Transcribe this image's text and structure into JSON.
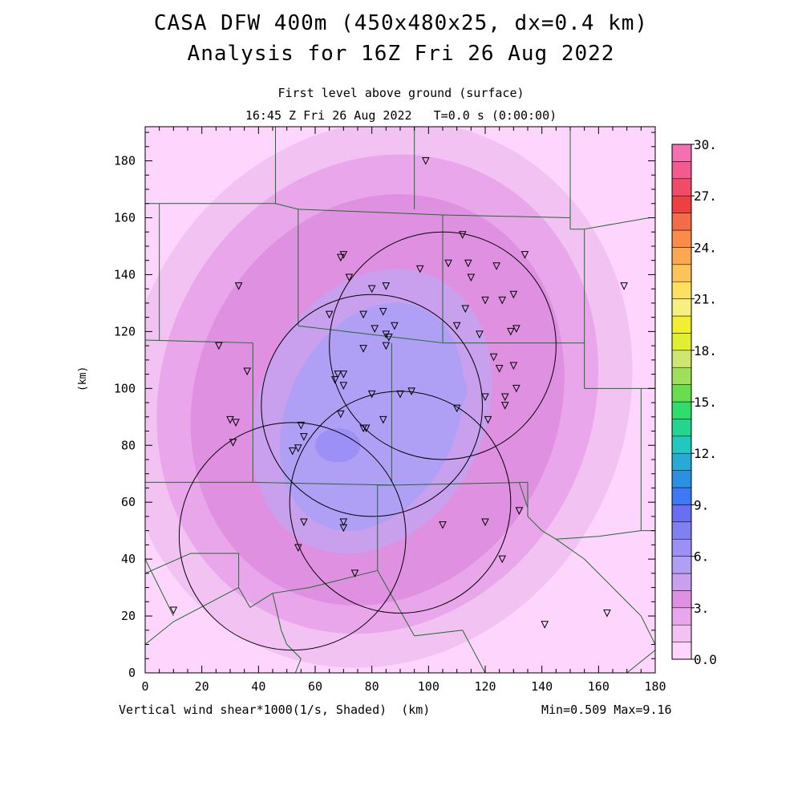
{
  "chart_data": {
    "type": "heatmap",
    "title": "CASA DFW 400m (450x480x25, dx=0.4 km)",
    "subtitle": "Analysis for 16Z Fri 26 Aug 2022",
    "level": "First level above ground (surface)",
    "valid_time": "16:45 Z Fri 26 Aug 2022   T=0.0 s (0:00:00)",
    "xlabel": "Vertical wind shear*1000(1/s, Shaded)  (km)",
    "ylabel": "(km)",
    "stats": "Min=0.509 Max=9.16",
    "xlim": [
      0,
      180
    ],
    "ylim": [
      0,
      192
    ],
    "x_ticks": [
      "0",
      "20",
      "40",
      "60",
      "80",
      "100",
      "120",
      "140",
      "160",
      "180"
    ],
    "y_ticks": [
      "0",
      "20",
      "40",
      "60",
      "80",
      "100",
      "120",
      "140",
      "160",
      "180"
    ],
    "colorbar": {
      "range": [
        0,
        30
      ],
      "step": 1.5,
      "labels": [
        "0.0",
        "3.",
        "6.",
        "9.",
        "12.",
        "15.",
        "18.",
        "21.",
        "24.",
        "27.",
        "30."
      ],
      "colors": [
        "#fdd5fd",
        "#f2c3f2",
        "#eaa6ea",
        "#e090e0",
        "#c9a0ee",
        "#b0a0f5",
        "#9c8ff5",
        "#8080f0",
        "#6a6ef0",
        "#3f78f6",
        "#2c90e2",
        "#28aad4",
        "#20c8c0",
        "#22d690",
        "#30dc6a",
        "#66de50",
        "#9ee05a",
        "#d0e670",
        "#e0f030",
        "#f0f030",
        "#f6f080",
        "#fde060",
        "#fcc458",
        "#fba850",
        "#f88c48",
        "#f26c48",
        "#ef4040",
        "#f04c6a",
        "#f25a90",
        "#f470b0"
      ]
    },
    "field_blobs": [
      {
        "cx": 82,
        "cy": 100,
        "rx": 100,
        "ry": 110,
        "rot": 25,
        "value": 1.2
      },
      {
        "cx": 82,
        "cy": 98,
        "rx": 88,
        "ry": 98,
        "rot": 25,
        "value": 2.3
      },
      {
        "cx": 82,
        "cy": 98,
        "rx": 76,
        "ry": 86,
        "rot": 25,
        "value": 3.4
      },
      {
        "cx": 82,
        "cy": 96,
        "rx": 64,
        "ry": 74,
        "rot": 25,
        "value": 4.5
      },
      {
        "cx": 80,
        "cy": 94,
        "rx": 52,
        "ry": 62,
        "rot": 25,
        "value": 5.6
      },
      {
        "cx": 80,
        "cy": 92,
        "rx": 40,
        "ry": 52,
        "rot": 25,
        "value": 6.7
      },
      {
        "cx": 80,
        "cy": 90,
        "rx": 30,
        "ry": 42,
        "rot": 25,
        "value": 7.5
      },
      {
        "cx": 77,
        "cy": 85,
        "rx": 20,
        "ry": 32,
        "rot": 25,
        "value": 8.3
      },
      {
        "cx": 100,
        "cy": 102,
        "rx": 14,
        "ry": 10,
        "rot": 20,
        "value": 8.3
      },
      {
        "cx": 68,
        "cy": 80,
        "rx": 8,
        "ry": 6,
        "rot": 0,
        "value": 9.0
      }
    ],
    "radar_rings": [
      {
        "cx": 105,
        "cy": 115,
        "r": 40
      },
      {
        "cx": 80,
        "cy": 94,
        "r": 39
      },
      {
        "cx": 90,
        "cy": 60,
        "r": 39
      },
      {
        "cx": 52,
        "cy": 48,
        "r": 40
      }
    ],
    "stations": [
      [
        99,
        180
      ],
      [
        112,
        154
      ],
      [
        134,
        147
      ],
      [
        70,
        147
      ],
      [
        69,
        146
      ],
      [
        107,
        144
      ],
      [
        114,
        144
      ],
      [
        124,
        143
      ],
      [
        97,
        142
      ],
      [
        115,
        139
      ],
      [
        72,
        139
      ],
      [
        33,
        136
      ],
      [
        85,
        136
      ],
      [
        80,
        135
      ],
      [
        169,
        136
      ],
      [
        130,
        133
      ],
      [
        126,
        131
      ],
      [
        120,
        131
      ],
      [
        113,
        128
      ],
      [
        84,
        127
      ],
      [
        65,
        126
      ],
      [
        77,
        126
      ],
      [
        88,
        122
      ],
      [
        110,
        122
      ],
      [
        81,
        121
      ],
      [
        131,
        121
      ],
      [
        129,
        120
      ],
      [
        118,
        119
      ],
      [
        85,
        119
      ],
      [
        86,
        118
      ],
      [
        85,
        115
      ],
      [
        77,
        114
      ],
      [
        26,
        115
      ],
      [
        123,
        111
      ],
      [
        125,
        107
      ],
      [
        130,
        108
      ],
      [
        68,
        105
      ],
      [
        36,
        106
      ],
      [
        70,
        105
      ],
      [
        67,
        103
      ],
      [
        70,
        101
      ],
      [
        131,
        100
      ],
      [
        94,
        99
      ],
      [
        90,
        98
      ],
      [
        80,
        98
      ],
      [
        127,
        97
      ],
      [
        120,
        97
      ],
      [
        110,
        93
      ],
      [
        127,
        94
      ],
      [
        69,
        91
      ],
      [
        84,
        89
      ],
      [
        121,
        89
      ],
      [
        30,
        89
      ],
      [
        32,
        88
      ],
      [
        77,
        86
      ],
      [
        78,
        86
      ],
      [
        55,
        87
      ],
      [
        56,
        83
      ],
      [
        31,
        81
      ],
      [
        54,
        79
      ],
      [
        52,
        78
      ],
      [
        132,
        57
      ],
      [
        56,
        53
      ],
      [
        120,
        53
      ],
      [
        105,
        52
      ],
      [
        70,
        53
      ],
      [
        70,
        51
      ],
      [
        54,
        44
      ],
      [
        126,
        40
      ],
      [
        74,
        35
      ],
      [
        10,
        22
      ],
      [
        141,
        17
      ],
      [
        163,
        21
      ]
    ],
    "boundaries": [
      [
        [
          46,
          192
        ],
        [
          46,
          165
        ]
      ],
      [
        [
          0,
          165
        ],
        [
          46,
          165
        ]
      ],
      [
        [
          46,
          165
        ],
        [
          54,
          163
        ]
      ],
      [
        [
          54,
          163
        ],
        [
          105,
          161
        ]
      ],
      [
        [
          105,
          161
        ],
        [
          150,
          160
        ]
      ],
      [
        [
          95,
          192
        ],
        [
          95,
          163
        ]
      ],
      [
        [
          150,
          192
        ],
        [
          150,
          156
        ]
      ],
      [
        [
          150,
          156
        ],
        [
          155,
          156
        ]
      ],
      [
        [
          155,
          156
        ],
        [
          178,
          160
        ]
      ],
      [
        [
          178,
          160
        ],
        [
          180,
          160
        ]
      ],
      [
        [
          5,
          165
        ],
        [
          5,
          117
        ]
      ],
      [
        [
          0,
          117
        ],
        [
          38,
          116
        ]
      ],
      [
        [
          38,
          116
        ],
        [
          38,
          67
        ]
      ],
      [
        [
          54,
          163
        ],
        [
          54,
          122
        ]
      ],
      [
        [
          54,
          122
        ],
        [
          105,
          116
        ]
      ],
      [
        [
          105,
          161
        ],
        [
          105,
          116
        ]
      ],
      [
        [
          105,
          116
        ],
        [
          155,
          116
        ]
      ],
      [
        [
          155,
          156
        ],
        [
          155,
          116
        ]
      ],
      [
        [
          155,
          116
        ],
        [
          155,
          100
        ]
      ],
      [
        [
          155,
          100
        ],
        [
          180,
          100
        ]
      ],
      [
        [
          87,
          116
        ],
        [
          87,
          67
        ]
      ],
      [
        [
          0,
          67
        ],
        [
          38,
          67
        ]
      ],
      [
        [
          38,
          67
        ],
        [
          87,
          66
        ]
      ],
      [
        [
          87,
          66
        ],
        [
          135,
          67
        ]
      ],
      [
        [
          135,
          67
        ],
        [
          135,
          55
        ]
      ],
      [
        [
          135,
          55
        ],
        [
          140,
          50
        ]
      ],
      [
        [
          140,
          50
        ],
        [
          145,
          47
        ]
      ],
      [
        [
          145,
          47
        ],
        [
          160,
          48
        ]
      ],
      [
        [
          160,
          48
        ],
        [
          175,
          50
        ]
      ],
      [
        [
          175,
          50
        ],
        [
          180,
          50
        ]
      ],
      [
        [
          175,
          100
        ],
        [
          175,
          50
        ]
      ],
      [
        [
          87,
          66
        ],
        [
          82,
          66
        ]
      ],
      [
        [
          82,
          66
        ],
        [
          82,
          36
        ]
      ],
      [
        [
          82,
          36
        ],
        [
          58,
          30
        ]
      ],
      [
        [
          58,
          30
        ],
        [
          45,
          28
        ]
      ],
      [
        [
          45,
          28
        ],
        [
          37,
          23
        ]
      ],
      [
        [
          37,
          23
        ],
        [
          33,
          30
        ]
      ],
      [
        [
          33,
          30
        ],
        [
          33,
          42
        ]
      ],
      [
        [
          33,
          42
        ],
        [
          16,
          42
        ]
      ],
      [
        [
          16,
          42
        ],
        [
          0,
          35
        ]
      ],
      [
        [
          33,
          30
        ],
        [
          10,
          18
        ]
      ],
      [
        [
          10,
          18
        ],
        [
          0,
          10
        ]
      ],
      [
        [
          82,
          36
        ],
        [
          95,
          13
        ]
      ],
      [
        [
          95,
          13
        ],
        [
          112,
          15
        ]
      ],
      [
        [
          112,
          15
        ],
        [
          120,
          0
        ]
      ],
      [
        [
          45,
          28
        ],
        [
          48,
          15
        ]
      ],
      [
        [
          48,
          15
        ],
        [
          50,
          10
        ]
      ],
      [
        [
          50,
          10
        ],
        [
          55,
          5
        ]
      ],
      [
        [
          55,
          5
        ],
        [
          53,
          0
        ]
      ],
      [
        [
          145,
          47
        ],
        [
          155,
          40
        ]
      ],
      [
        [
          155,
          40
        ],
        [
          165,
          30
        ]
      ],
      [
        [
          165,
          30
        ],
        [
          175,
          20
        ]
      ],
      [
        [
          175,
          20
        ],
        [
          180,
          10
        ]
      ],
      [
        [
          170,
          0
        ],
        [
          180,
          8
        ]
      ],
      [
        [
          0,
          40
        ],
        [
          10,
          20
        ]
      ],
      [
        [
          132,
          67
        ],
        [
          135,
          58
        ]
      ]
    ]
  }
}
